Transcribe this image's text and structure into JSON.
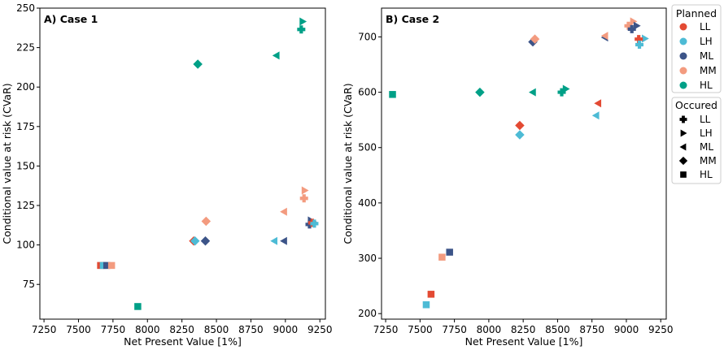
{
  "legend_planned": {
    "title": "Planned",
    "entries": [
      {
        "label": "LL",
        "color": "#e34a33"
      },
      {
        "label": "LH",
        "color": "#4dbbd5"
      },
      {
        "label": "ML",
        "color": "#3c5488"
      },
      {
        "label": "MM",
        "color": "#f39b7f"
      },
      {
        "label": "HL",
        "color": "#00a087"
      }
    ]
  },
  "legend_occured": {
    "title": "Occured",
    "entries": [
      {
        "label": "LL",
        "marker": "plus"
      },
      {
        "label": "LH",
        "marker": "triangle-right"
      },
      {
        "label": "ML",
        "marker": "triangle-left"
      },
      {
        "label": "MM",
        "marker": "diamond"
      },
      {
        "label": "HL",
        "marker": "square"
      }
    ]
  },
  "chart_data": [
    {
      "type": "scatter",
      "title": "A) Case 1",
      "xlabel": "Net Present Value [1%]",
      "ylabel": "Conditional value at risk (CVaR)",
      "xlim": [
        7220,
        9290
      ],
      "ylim": [
        53,
        250
      ],
      "xticks": [
        7250,
        7500,
        7750,
        8000,
        8250,
        8500,
        8750,
        9000,
        9250
      ],
      "yticks": [
        75,
        100,
        125,
        150,
        175,
        200,
        225,
        250
      ],
      "points": [
        {
          "x": 7660,
          "y": 87,
          "planned": "LL",
          "occurred": "square"
        },
        {
          "x": 7680,
          "y": 87,
          "planned": "LH",
          "occurred": "square"
        },
        {
          "x": 7705,
          "y": 87,
          "planned": "ML",
          "occurred": "square"
        },
        {
          "x": 7740,
          "y": 87,
          "planned": "MM",
          "occurred": "square"
        },
        {
          "x": 7930,
          "y": 61,
          "planned": "HL",
          "occurred": "square"
        },
        {
          "x": 8335,
          "y": 102.5,
          "planned": "LL",
          "occurred": "diamond"
        },
        {
          "x": 8345,
          "y": 102.5,
          "planned": "LH",
          "occurred": "diamond"
        },
        {
          "x": 8420,
          "y": 102.5,
          "planned": "ML",
          "occurred": "diamond"
        },
        {
          "x": 8425,
          "y": 115,
          "planned": "MM",
          "occurred": "diamond"
        },
        {
          "x": 8365,
          "y": 214.5,
          "planned": "HL",
          "occurred": "diamond"
        },
        {
          "x": 8920,
          "y": 102.5,
          "planned": "LH",
          "occurred": "triangle-left"
        },
        {
          "x": 8990,
          "y": 102.5,
          "planned": "ML",
          "occurred": "triangle-left"
        },
        {
          "x": 8990,
          "y": 121,
          "planned": "MM",
          "occurred": "triangle-left"
        },
        {
          "x": 8935,
          "y": 220,
          "planned": "HL",
          "occurred": "triangle-left"
        },
        {
          "x": 9140,
          "y": 134.5,
          "planned": "MM",
          "occurred": "triangle-right"
        },
        {
          "x": 9125,
          "y": 241.5,
          "planned": "HL",
          "occurred": "triangle-right"
        },
        {
          "x": 9185,
          "y": 115.5,
          "planned": "ML",
          "occurred": "triangle-right"
        },
        {
          "x": 9210,
          "y": 114,
          "planned": "LH",
          "occurred": "triangle-right"
        },
        {
          "x": 9135,
          "y": 129.5,
          "planned": "MM",
          "occurred": "plus"
        },
        {
          "x": 9115,
          "y": 236.5,
          "planned": "HL",
          "occurred": "plus"
        },
        {
          "x": 9175,
          "y": 113,
          "planned": "ML",
          "occurred": "plus"
        },
        {
          "x": 9195,
          "y": 114,
          "planned": "LL",
          "occurred": "plus"
        },
        {
          "x": 9210,
          "y": 113.5,
          "planned": "LH",
          "occurred": "plus"
        }
      ]
    },
    {
      "type": "scatter",
      "title": "B) Case 2",
      "xlabel": "Net Present Value [1%]",
      "ylabel": "Conditional value at risk (CVaR)",
      "xlim": [
        7220,
        9290
      ],
      "ylim": [
        190,
        752
      ],
      "xticks": [
        7250,
        7500,
        7750,
        8000,
        8250,
        8500,
        8750,
        9000,
        9250
      ],
      "yticks": [
        200,
        300,
        400,
        500,
        600,
        700
      ],
      "points": [
        {
          "x": 7300,
          "y": 596,
          "planned": "HL",
          "occurred": "square"
        },
        {
          "x": 7545,
          "y": 216,
          "planned": "LH",
          "occurred": "square"
        },
        {
          "x": 7580,
          "y": 235,
          "planned": "LL",
          "occurred": "square"
        },
        {
          "x": 7660,
          "y": 302,
          "planned": "MM",
          "occurred": "square"
        },
        {
          "x": 7715,
          "y": 311,
          "planned": "ML",
          "occurred": "square"
        },
        {
          "x": 7935,
          "y": 600,
          "planned": "HL",
          "occurred": "diamond"
        },
        {
          "x": 8225,
          "y": 540,
          "planned": "LL",
          "occurred": "diamond"
        },
        {
          "x": 8225,
          "y": 523,
          "planned": "LH",
          "occurred": "diamond"
        },
        {
          "x": 8320,
          "y": 691,
          "planned": "ML",
          "occurred": "diamond"
        },
        {
          "x": 8335,
          "y": 696,
          "planned": "MM",
          "occurred": "diamond"
        },
        {
          "x": 8320,
          "y": 600,
          "planned": "HL",
          "occurred": "triangle-left"
        },
        {
          "x": 8780,
          "y": 558,
          "planned": "LH",
          "occurred": "triangle-left"
        },
        {
          "x": 8795,
          "y": 580,
          "planned": "LL",
          "occurred": "triangle-left"
        },
        {
          "x": 8845,
          "y": 699,
          "planned": "ML",
          "occurred": "triangle-left"
        },
        {
          "x": 8845,
          "y": 702,
          "planned": "MM",
          "occurred": "triangle-left"
        },
        {
          "x": 8560,
          "y": 606,
          "planned": "HL",
          "occurred": "triangle-right"
        },
        {
          "x": 9050,
          "y": 728,
          "planned": "MM",
          "occurred": "triangle-right"
        },
        {
          "x": 9075,
          "y": 720,
          "planned": "ML",
          "occurred": "triangle-right"
        },
        {
          "x": 9135,
          "y": 697,
          "planned": "LH",
          "occurred": "triangle-right"
        },
        {
          "x": 8530,
          "y": 600,
          "planned": "HL",
          "occurred": "plus"
        },
        {
          "x": 9015,
          "y": 720,
          "planned": "MM",
          "occurred": "plus"
        },
        {
          "x": 9040,
          "y": 714,
          "planned": "ML",
          "occurred": "plus"
        },
        {
          "x": 9090,
          "y": 696,
          "planned": "LL",
          "occurred": "plus"
        },
        {
          "x": 9095,
          "y": 686,
          "planned": "LH",
          "occurred": "plus"
        }
      ]
    }
  ]
}
